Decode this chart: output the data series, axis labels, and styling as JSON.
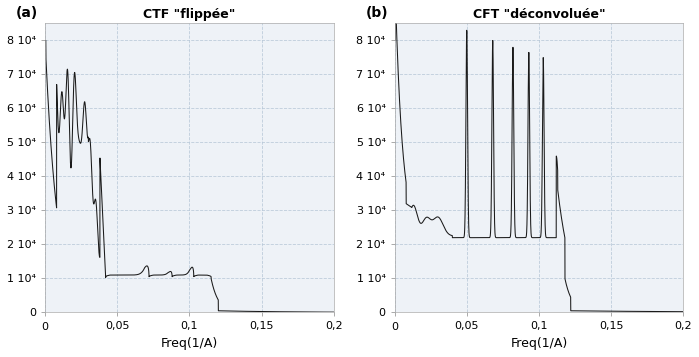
{
  "title_a": "CTF \"flippée\"",
  "title_b": "CFT \"déconvoluée\"",
  "label_a": "(a)",
  "label_b": "(b)",
  "xlabel": "Freq(1/A)",
  "xlim": [
    0,
    0.2
  ],
  "ylim": [
    0,
    85000
  ],
  "yticks": [
    0,
    10000,
    20000,
    30000,
    40000,
    50000,
    60000,
    70000,
    80000
  ],
  "ytick_labels": [
    "0",
    "1 10⁴",
    "2 10⁴",
    "3 10⁴",
    "4 10⁴",
    "5 10⁴",
    "6 10⁴",
    "7 10⁴",
    "8 10⁴"
  ],
  "xticks": [
    0,
    0.05,
    0.1,
    0.15,
    0.2
  ],
  "xtick_labels": [
    "0",
    "0,05",
    "0,1",
    "0,15",
    "0,2"
  ],
  "line_color": "#1a1a1a",
  "grid_color": "#b8c8d8",
  "bg_color": "#eef2f7",
  "title_fontsize": 9,
  "label_fontsize": 9,
  "tick_fontsize": 8
}
